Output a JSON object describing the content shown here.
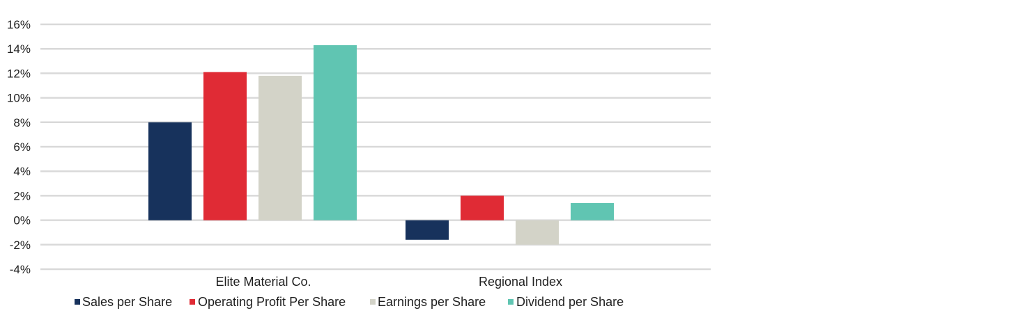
{
  "chart_data": {
    "type": "bar",
    "title": "",
    "xlabel": "",
    "ylabel": "",
    "ylim": [
      -4,
      16
    ],
    "yticks": [
      16,
      14,
      12,
      10,
      8,
      6,
      4,
      2,
      0,
      -2,
      -4
    ],
    "ytick_labels": [
      "16%",
      "14%",
      "12%",
      "10%",
      "8%",
      "6%",
      "4%",
      "2%",
      "0%",
      "-2%",
      "-4%"
    ],
    "grid": true,
    "legend_position": "bottom",
    "categories": [
      "Elite Material Co.",
      "Regional Index"
    ],
    "series": [
      {
        "name": "Sales per Share",
        "color": "#17325c",
        "values": [
          8.0,
          -1.6
        ]
      },
      {
        "name": "Operating Profit Per Share",
        "color": "#e02b35",
        "values": [
          12.1,
          2.0
        ]
      },
      {
        "name": "Earnings per Share",
        "color": "#d3d3c8",
        "values": [
          11.8,
          -2.0
        ]
      },
      {
        "name": "Dividend per Share",
        "color": "#60c5b2",
        "values": [
          14.3,
          1.4
        ]
      }
    ]
  }
}
